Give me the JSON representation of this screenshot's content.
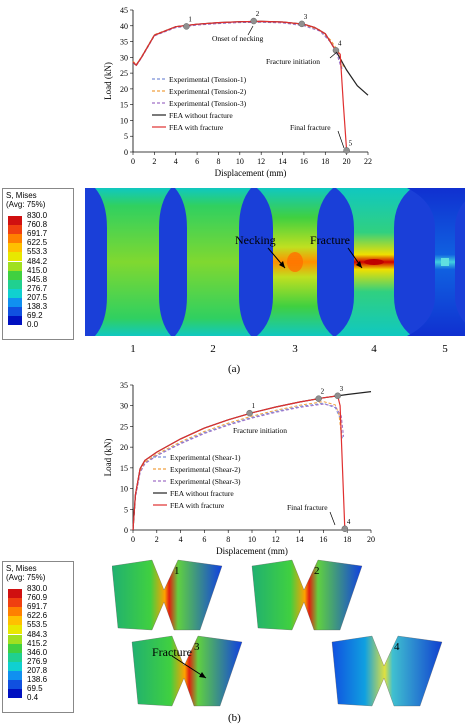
{
  "chart_data": [
    {
      "type": "line",
      "xlabel": "Displacement (mm)",
      "ylabel": "Load (kN)",
      "xlim": [
        0,
        22
      ],
      "ylim": [
        0,
        45
      ],
      "xticks": [
        0,
        2,
        4,
        6,
        8,
        10,
        12,
        14,
        16,
        18,
        20,
        22
      ],
      "yticks": [
        0,
        5,
        10,
        15,
        20,
        25,
        30,
        35,
        40,
        45
      ],
      "grid": false,
      "legend": "center-left",
      "series": [
        {
          "name": "Experimental (Tension-1)",
          "color": "#7b8fd6",
          "dash": true,
          "x": [
            0,
            0.3,
            0.8,
            2,
            4,
            6,
            8,
            10,
            12,
            14,
            16,
            17.5,
            18.5,
            19.2,
            19.6
          ],
          "y": [
            28.5,
            27.5,
            30,
            37,
            39.6,
            40.4,
            40.8,
            41.1,
            41.2,
            41.0,
            40.2,
            38.5,
            35,
            31,
            26
          ]
        },
        {
          "name": "Experimental (Tension-2)",
          "color": "#f0a040",
          "dash": true,
          "x": [
            0,
            0.3,
            0.8,
            2,
            4,
            6,
            8,
            10,
            12,
            14,
            16,
            17.5,
            18.5,
            19.3,
            19.7
          ],
          "y": [
            28.8,
            27.7,
            30.2,
            37.2,
            39.7,
            40.5,
            40.9,
            41.2,
            41.3,
            41.1,
            40.3,
            38.7,
            35.5,
            31.5,
            27
          ]
        },
        {
          "name": "Experimental (Tension-3)",
          "color": "#a070c8",
          "dash": true,
          "x": [
            0,
            0.3,
            0.8,
            2,
            4,
            6,
            8,
            10,
            12,
            14,
            16,
            17.5,
            18.5,
            19.1,
            19.5
          ],
          "y": [
            28.3,
            27.3,
            29.8,
            36.8,
            39.4,
            40.2,
            40.7,
            41.0,
            41.1,
            40.9,
            40.0,
            38.3,
            34.8,
            31,
            26.5
          ]
        },
        {
          "name": "FEA without fracture",
          "color": "#222222",
          "dash": false,
          "x": [
            0,
            0.3,
            0.8,
            2,
            4,
            6,
            8,
            10,
            12,
            14,
            16,
            17,
            18,
            19,
            20,
            21,
            22
          ],
          "y": [
            28.5,
            27.5,
            30,
            37,
            39.7,
            40.5,
            41.0,
            41.3,
            41.4,
            41.2,
            40.5,
            39.5,
            37.5,
            32,
            26,
            21,
            18
          ]
        },
        {
          "name": "FEA with fracture",
          "color": "#e03030",
          "dash": false,
          "x": [
            0,
            0.3,
            0.8,
            2,
            4,
            6,
            8,
            10,
            12,
            14,
            16,
            17,
            18,
            19,
            19.4,
            19.7,
            20.0
          ],
          "y": [
            28.5,
            27.5,
            30,
            37,
            39.7,
            40.5,
            41.0,
            41.3,
            41.4,
            41.2,
            40.5,
            39.5,
            37.5,
            32,
            31,
            15,
            0.5
          ]
        }
      ],
      "points": [
        {
          "label": "1",
          "x": 5,
          "y": 39.8
        },
        {
          "label": "2",
          "x": 11.3,
          "y": 41.5
        },
        {
          "label": "3",
          "x": 15.8,
          "y": 40.6
        },
        {
          "label": "4",
          "x": 19.0,
          "y": 32.2
        },
        {
          "label": "5",
          "x": 20.0,
          "y": 0.5
        }
      ],
      "annotations": [
        "Onset of necking",
        "Fracture initiation",
        "Final fracture"
      ]
    },
    {
      "type": "line",
      "xlabel": "Displacement (mm)",
      "ylabel": "Load (kN)",
      "xlim": [
        0,
        20
      ],
      "ylim": [
        0,
        35
      ],
      "xticks": [
        0,
        2,
        4,
        6,
        8,
        10,
        12,
        14,
        16,
        18,
        20
      ],
      "yticks": [
        0,
        5,
        10,
        15,
        20,
        25,
        30,
        35
      ],
      "grid": false,
      "legend": "center",
      "series": [
        {
          "name": "Experimental (Shear-1)",
          "color": "#7b8fd6",
          "dash": true,
          "x": [
            0,
            0.2,
            0.6,
            1,
            2,
            4,
            6,
            8,
            10,
            12,
            14,
            16,
            17,
            17.4,
            17.6
          ],
          "y": [
            0,
            8,
            14,
            16.2,
            18,
            21,
            23.5,
            25.5,
            27.2,
            28.6,
            29.8,
            30.6,
            29.5,
            27,
            22
          ]
        },
        {
          "name": "Experimental (Shear-2)",
          "color": "#f0a040",
          "dash": true,
          "x": [
            0,
            0.2,
            0.6,
            1,
            2,
            4,
            6,
            8,
            10,
            12,
            14,
            16,
            17,
            17.3,
            17.5
          ],
          "y": [
            0,
            8,
            14.2,
            16.4,
            18.3,
            21.3,
            23.8,
            25.8,
            27.5,
            28.9,
            30.1,
            31,
            30.2,
            28,
            23
          ]
        },
        {
          "name": "Experimental (Shear-3)",
          "color": "#a070c8",
          "dash": true,
          "x": [
            0,
            0.2,
            0.6,
            1,
            2,
            4,
            6,
            8,
            10,
            12,
            14,
            16,
            17,
            17.5,
            17.7
          ],
          "y": [
            0,
            7.8,
            13.8,
            16,
            17.9,
            20.8,
            23.3,
            25.3,
            27,
            28.4,
            29.6,
            30.4,
            29.8,
            27.5,
            22.5
          ]
        },
        {
          "name": "FEA without fracture",
          "color": "#222222",
          "dash": false,
          "x": [
            0,
            0.2,
            0.6,
            1,
            2,
            4,
            6,
            8,
            10,
            12,
            14,
            16,
            18,
            20
          ],
          "y": [
            0,
            8.5,
            14.8,
            16.8,
            18.8,
            22,
            24.6,
            26.6,
            28.3,
            29.7,
            30.9,
            31.9,
            32.7,
            33.4
          ]
        },
        {
          "name": "FEA with fracture",
          "color": "#e03030",
          "dash": false,
          "x": [
            0,
            0.2,
            0.6,
            1,
            2,
            4,
            6,
            8,
            10,
            12,
            14,
            16,
            17.2,
            17.4,
            17.8
          ],
          "y": [
            0,
            8.5,
            14.8,
            16.8,
            18.8,
            22,
            24.6,
            26.6,
            28.3,
            29.7,
            30.9,
            31.9,
            32.4,
            30,
            0.3
          ]
        }
      ],
      "points": [
        {
          "label": "1",
          "x": 9.8,
          "y": 28.2
        },
        {
          "label": "2",
          "x": 15.6,
          "y": 31.7
        },
        {
          "label": "3",
          "x": 17.2,
          "y": 32.4
        },
        {
          "label": "4",
          "x": 17.8,
          "y": 0.3
        }
      ],
      "annotations": [
        "Fracture initiation",
        "Final fracture"
      ]
    }
  ],
  "legend_a": {
    "title": "S, Mises",
    "subtitle": "(Avg: 75%)",
    "values": [
      "830.0",
      "760.8",
      "691.7",
      "622.5",
      "553.3",
      "484.2",
      "415.0",
      "345.8",
      "276.7",
      "207.5",
      "138.3",
      "69.2",
      "0.0"
    ]
  },
  "legend_b": {
    "title": "S, Mises",
    "subtitle": "(Avg: 75%)",
    "values": [
      "830.0",
      "760.9",
      "691.7",
      "622.6",
      "553.5",
      "484.3",
      "415.2",
      "346.0",
      "276.9",
      "207.8",
      "138.6",
      "69.5",
      "0.4"
    ]
  },
  "contour_colors": [
    "#d01010",
    "#f04010",
    "#ff8000",
    "#ffc000",
    "#e8e800",
    "#a0e020",
    "#40d040",
    "#20d090",
    "#10d0d0",
    "#1090f0",
    "#1050e0",
    "#0010c0"
  ],
  "specimens_a": {
    "labels": [
      "1",
      "2",
      "3",
      "4",
      "5"
    ],
    "necking": "Necking",
    "fracture": "Fracture"
  },
  "specimens_b": {
    "labels": [
      "1",
      "2",
      "3",
      "4"
    ],
    "fracture": "Fracture"
  },
  "captions": {
    "a": "(a)",
    "b": "(b)"
  }
}
